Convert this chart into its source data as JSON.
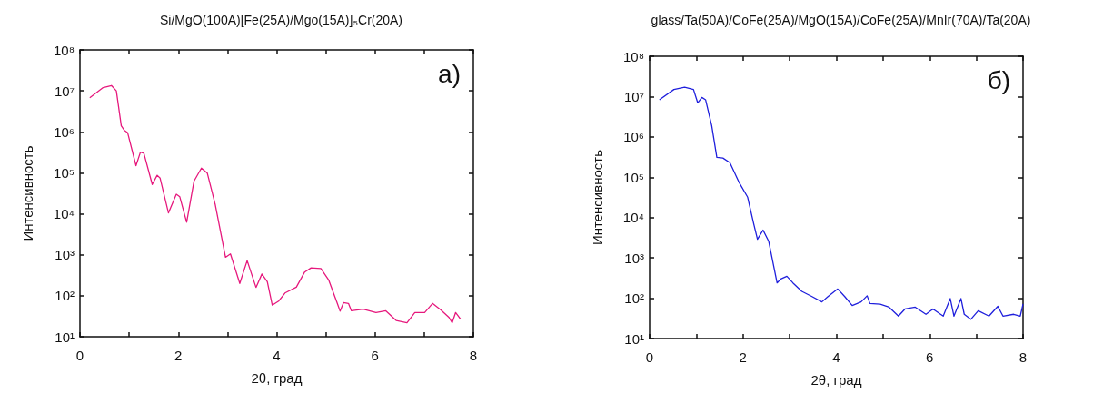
{
  "chart_data": [
    {
      "type": "line",
      "title": "Si/MgO(100A)[Fe(25A)/Mgo(15A)]₅Cr(20A)",
      "xlabel": "2θ, град",
      "ylabel": "Интенсивность",
      "annotations": [
        "a)"
      ],
      "log": "y",
      "grid": false,
      "marker": "none",
      "line_style": "solid",
      "xlim": [
        0,
        8
      ],
      "xticks": [
        0,
        {
          "value": 1,
          "label": null
        },
        2,
        {
          "value": 3,
          "label": null
        },
        4,
        {
          "value": 5,
          "label": null
        },
        6,
        {
          "value": 7,
          "label": null
        },
        8
      ],
      "ylim": [
        10,
        100000000
      ],
      "yticks": [
        {
          "value": 10,
          "label": "10¹"
        },
        {
          "value": 100,
          "label": "10²"
        },
        {
          "value": 1000,
          "label": "10³"
        },
        {
          "value": 10000,
          "label": "10⁴"
        },
        {
          "value": 100000,
          "label": "10⁵"
        },
        {
          "value": 1000000,
          "label": "10⁶"
        },
        {
          "value": 10000000,
          "label": "10⁷"
        },
        {
          "value": 100000000,
          "label": "10⁸"
        }
      ],
      "series": [
        {
          "color": "#e6197d",
          "x": [
            0.2,
            0.47,
            0.64,
            0.74,
            0.84,
            0.9,
            0.97,
            1.14,
            1.23,
            1.3,
            1.47,
            1.57,
            1.63,
            1.8,
            1.96,
            2.03,
            2.17,
            2.32,
            2.47,
            2.59,
            2.75,
            2.96,
            3.06,
            3.25,
            3.4,
            3.58,
            3.7,
            3.81,
            3.91,
            4.04,
            4.17,
            4.4,
            4.57,
            4.7,
            4.9,
            5.06,
            5.23,
            5.29,
            5.36,
            5.46,
            5.52,
            5.76,
            6.02,
            6.22,
            6.43,
            6.65,
            6.81,
            7.01,
            7.17,
            7.34,
            7.5,
            7.57,
            7.64,
            7.74
          ],
          "values": [
            6800000,
            12000000,
            13500000,
            10000000,
            1400000,
            1100000,
            950000,
            150000,
            320000,
            300000,
            52000,
            87000,
            74000,
            10500,
            30000,
            26000,
            6200,
            63000,
            130000,
            98000,
            17000,
            870,
            1050,
            200,
            720,
            160,
            340,
            220,
            59,
            74,
            117,
            162,
            380,
            480,
            460,
            240,
            67,
            42,
            68,
            65,
            43,
            47,
            39,
            43,
            25,
            22,
            39,
            39,
            65,
            45,
            30,
            22,
            39,
            27
          ]
        }
      ]
    },
    {
      "type": "line",
      "title": "glass/Ta(50A)/CoFe(25A)/MgO(15A)/CoFe(25A)/MnIr(70A)/Ta(20A)",
      "xlabel": "2θ, град",
      "ylabel": "Интенсивность",
      "annotations": [
        "б)"
      ],
      "log": "y",
      "grid": false,
      "marker": "none",
      "line_style": "solid",
      "xlim": [
        0,
        8
      ],
      "xticks": [
        0,
        {
          "value": 1,
          "label": null
        },
        2,
        {
          "value": 3,
          "label": null
        },
        4,
        {
          "value": 5,
          "label": null
        },
        6,
        {
          "value": 7,
          "label": null
        },
        8
      ],
      "ylim": [
        10,
        100000000
      ],
      "yticks": [
        {
          "value": 10,
          "label": "10¹"
        },
        {
          "value": 100,
          "label": "10²"
        },
        {
          "value": 1000,
          "label": "10³"
        },
        {
          "value": 10000,
          "label": "10⁴"
        },
        {
          "value": 100000,
          "label": "10⁵"
        },
        {
          "value": 1000000,
          "label": "10⁶"
        },
        {
          "value": 10000000,
          "label": "10⁷"
        },
        {
          "value": 100000000,
          "label": "10⁸"
        }
      ],
      "series": [
        {
          "color": "#1f1fdc",
          "x": [
            0.21,
            0.52,
            0.75,
            0.94,
            1.03,
            1.12,
            1.2,
            1.33,
            1.44,
            1.57,
            1.72,
            1.91,
            2.1,
            2.23,
            2.31,
            2.43,
            2.55,
            2.73,
            2.81,
            2.94,
            3.07,
            3.26,
            3.48,
            3.69,
            3.82,
            4.03,
            4.18,
            4.34,
            4.53,
            4.66,
            4.72,
            4.94,
            5.13,
            5.33,
            5.47,
            5.69,
            5.92,
            6.07,
            6.29,
            6.44,
            6.52,
            6.67,
            6.74,
            6.88,
            7.04,
            7.27,
            7.46,
            7.57,
            7.8,
            7.94,
            8.0
          ],
          "values": [
            8300000,
            15000000,
            17000000,
            15000000,
            7000000,
            9500000,
            8300000,
            1900000,
            310000,
            300000,
            230000,
            77000,
            32000,
            7000,
            2900,
            4900,
            2600,
            240,
            300,
            350,
            240,
            148,
            110,
            81,
            110,
            170,
            110,
            66,
            81,
            115,
            74,
            71,
            60,
            36,
            54,
            60,
            40,
            54,
            36,
            98,
            36,
            98,
            40,
            30,
            49,
            36,
            63,
            36,
            40,
            36,
            72
          ]
        }
      ]
    }
  ]
}
